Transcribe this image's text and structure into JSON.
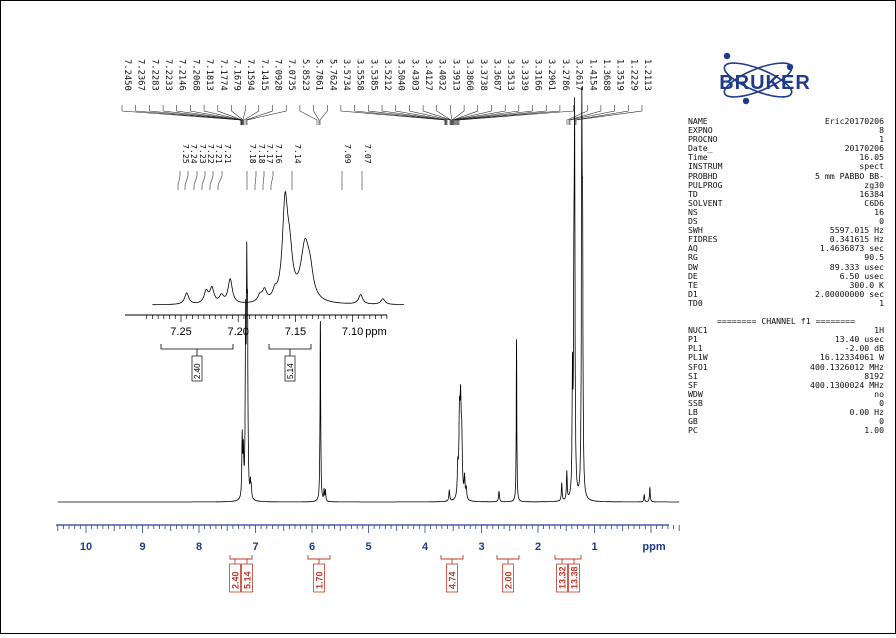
{
  "spectrum": {
    "logo_text": "BRUKER",
    "main_xaxis": {
      "xlim": [
        10.5,
        -0.5
      ],
      "ticks": [
        "10",
        "9",
        "8",
        "7",
        "6",
        "5",
        "4",
        "3",
        "2",
        "1"
      ],
      "unit": "ppm"
    },
    "inset_xaxis": {
      "ticks": [
        "7.25",
        "7.20",
        "7.15",
        "7.10"
      ],
      "unit": "ppm"
    }
  },
  "chart_data": {
    "type": "line",
    "title": "",
    "xlabel": "ppm",
    "ylabel": "",
    "xlim": [
      10.5,
      -0.5
    ],
    "peak_labels_main": [
      "7.2450",
      "7.2367",
      "7.2283",
      "7.2233",
      "7.2146",
      "7.2068",
      "7.1813",
      "7.1774",
      "7.1679",
      "7.1594",
      "7.1415",
      "7.0928",
      "7.0735",
      "5.8523",
      "5.7861",
      "5.7624",
      "3.5734",
      "3.5558",
      "3.5385",
      "3.5212",
      "3.5040",
      "3.4303",
      "3.4127",
      "3.4032",
      "3.3913",
      "3.3860",
      "3.3738",
      "3.3687",
      "3.3513",
      "3.3339",
      "3.3166",
      "3.2961",
      "3.2786",
      "3.2617",
      "1.4154",
      "1.3688",
      "1.3519",
      "1.2229",
      "1.2113"
    ],
    "peak_labels_inset": [
      "7.25",
      "7.24",
      "7.23",
      "7.22",
      "7.21",
      "7.21",
      "7.18",
      "7.18",
      "7.17",
      "7.16",
      "7.14",
      "7.09",
      "7.07"
    ],
    "integrals_main": [
      {
        "x": 7.22,
        "value": "2.40"
      },
      {
        "x": 7.13,
        "value": "5.14"
      },
      {
        "x": 5.8,
        "value": "1.70"
      },
      {
        "x": 3.38,
        "value": "4.74"
      },
      {
        "x": 2.38,
        "value": "2.00"
      },
      {
        "x": 1.33,
        "value": "13.32"
      },
      {
        "x": 1.21,
        "value": "13.38"
      }
    ],
    "integrals_inset": [
      {
        "x": 7.22,
        "value": "2.40"
      },
      {
        "x": 7.14,
        "value": "5.14"
      }
    ],
    "main_peaks": [
      {
        "x": 7.235,
        "h": 0.17,
        "w": 0.008
      },
      {
        "x": 7.215,
        "h": 0.12,
        "w": 0.008
      },
      {
        "x": 7.175,
        "h": 0.46,
        "w": 0.008
      },
      {
        "x": 7.155,
        "h": 0.56,
        "w": 0.008
      },
      {
        "x": 7.141,
        "h": 0.42,
        "w": 0.008
      },
      {
        "x": 7.09,
        "h": 0.04,
        "w": 0.008
      },
      {
        "x": 7.075,
        "h": 0.03,
        "w": 0.008
      },
      {
        "x": 5.852,
        "h": 0.51,
        "w": 0.007
      },
      {
        "x": 5.786,
        "h": 0.03,
        "w": 0.007
      },
      {
        "x": 5.762,
        "h": 0.03,
        "w": 0.007
      },
      {
        "x": 3.57,
        "h": 0.03,
        "w": 0.01
      },
      {
        "x": 3.42,
        "h": 0.08,
        "w": 0.01
      },
      {
        "x": 3.39,
        "h": 0.21,
        "w": 0.012
      },
      {
        "x": 3.37,
        "h": 0.23,
        "w": 0.012
      },
      {
        "x": 3.35,
        "h": 0.15,
        "w": 0.012
      },
      {
        "x": 3.3,
        "h": 0.06,
        "w": 0.01
      },
      {
        "x": 3.27,
        "h": 0.03,
        "w": 0.01
      },
      {
        "x": 2.69,
        "h": 0.03,
        "w": 0.01
      },
      {
        "x": 2.38,
        "h": 0.46,
        "w": 0.006
      },
      {
        "x": 1.58,
        "h": 0.05,
        "w": 0.008
      },
      {
        "x": 1.49,
        "h": 0.08,
        "w": 0.008
      },
      {
        "x": 1.39,
        "h": 0.33,
        "w": 0.008
      },
      {
        "x": 1.365,
        "h": 0.49,
        "w": 0.008
      },
      {
        "x": 1.352,
        "h": 0.98,
        "w": 0.008
      },
      {
        "x": 1.225,
        "h": 1.0,
        "w": 0.008
      },
      {
        "x": 1.211,
        "h": 0.64,
        "w": 0.008
      },
      {
        "x": 0.12,
        "h": 0.02,
        "w": 0.008
      },
      {
        "x": 0.02,
        "h": 0.04,
        "w": 0.008
      }
    ],
    "inset_peaks": [
      {
        "x": 7.245,
        "h": 0.12,
        "w": 0.0022
      },
      {
        "x": 7.228,
        "h": 0.13,
        "w": 0.0022
      },
      {
        "x": 7.223,
        "h": 0.16,
        "w": 0.0022
      },
      {
        "x": 7.2146,
        "h": 0.08,
        "w": 0.0022
      },
      {
        "x": 7.207,
        "h": 0.26,
        "w": 0.0022
      },
      {
        "x": 7.181,
        "h": 0.07,
        "w": 0.0022
      },
      {
        "x": 7.177,
        "h": 0.12,
        "w": 0.0022
      },
      {
        "x": 7.168,
        "h": 0.08,
        "w": 0.0022
      },
      {
        "x": 7.159,
        "h": 1.0,
        "w": 0.0028
      },
      {
        "x": 7.155,
        "h": 0.42,
        "w": 0.003
      },
      {
        "x": 7.1415,
        "h": 0.6,
        "w": 0.0045
      },
      {
        "x": 7.137,
        "h": 0.2,
        "w": 0.003
      },
      {
        "x": 7.093,
        "h": 0.1,
        "w": 0.0022
      },
      {
        "x": 7.0735,
        "h": 0.06,
        "w": 0.0022
      }
    ]
  },
  "params": {
    "rows_a": [
      [
        "NAME",
        "Eric20170206"
      ],
      [
        "EXPNO",
        "8"
      ],
      [
        "PROCNO",
        "1"
      ],
      [
        "Date_",
        "20170206"
      ],
      [
        "Time",
        "16.05"
      ],
      [
        "INSTRUM",
        "spect"
      ],
      [
        "PROBHD",
        "5 mm PABBO BB-"
      ],
      [
        "PULPROG",
        "zg30"
      ],
      [
        "TD",
        "16384"
      ],
      [
        "SOLVENT",
        "C6D6"
      ],
      [
        "NS",
        "16"
      ],
      [
        "DS",
        "0"
      ],
      [
        "SWH",
        "5597.015 Hz"
      ],
      [
        "FIDRES",
        "0.341615 Hz"
      ],
      [
        "AQ",
        "1.4636873 sec"
      ],
      [
        "RG",
        "90.5"
      ],
      [
        "DW",
        "89.333 usec"
      ],
      [
        "DE",
        "6.50 usec"
      ],
      [
        "TE",
        "300.0 K"
      ],
      [
        "D1",
        "2.00000000 sec"
      ],
      [
        "TD0",
        "1"
      ]
    ],
    "channel_header": "======== CHANNEL f1 ========",
    "rows_b": [
      [
        "NUC1",
        "1H"
      ],
      [
        "P1",
        "13.40 usec"
      ],
      [
        "PL1",
        "-2.00 dB"
      ],
      [
        "PL1W",
        "16.12334061 W"
      ],
      [
        "SFO1",
        "400.1326012 MHz"
      ],
      [
        "SI",
        "8192"
      ],
      [
        "SF",
        "400.1300024 MHz"
      ],
      [
        "WDW",
        "no"
      ],
      [
        "SSB",
        "0"
      ],
      [
        "LB",
        "0.00 Hz"
      ],
      [
        "GB",
        "0"
      ],
      [
        "PC",
        "1.00"
      ]
    ]
  }
}
